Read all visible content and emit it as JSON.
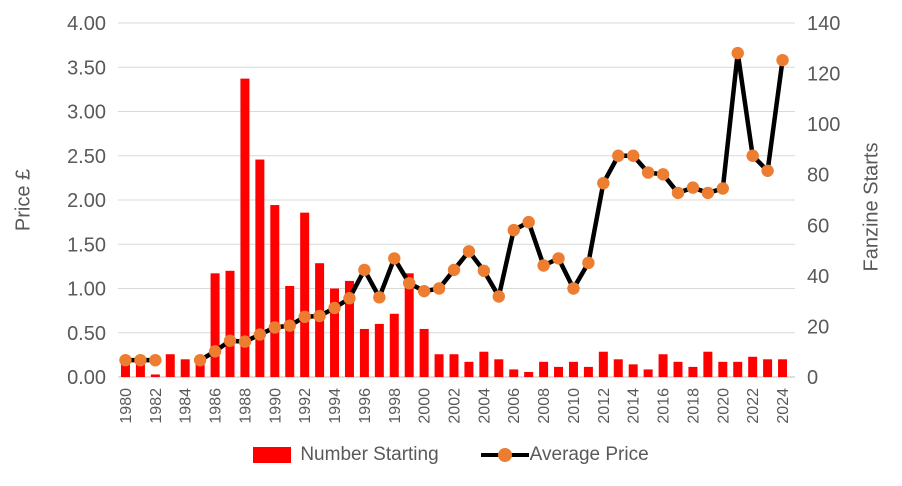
{
  "chart_data": {
    "type": "combo-bar-line",
    "categories": [
      1980,
      1981,
      1982,
      1983,
      1984,
      1985,
      1986,
      1987,
      1988,
      1989,
      1990,
      1991,
      1992,
      1993,
      1994,
      1995,
      1996,
      1997,
      1998,
      1999,
      2000,
      2001,
      2002,
      2003,
      2004,
      2005,
      2006,
      2007,
      2008,
      2009,
      2010,
      2011,
      2012,
      2013,
      2014,
      2015,
      2016,
      2017,
      2018,
      2019,
      2020,
      2021,
      2022,
      2023,
      2024
    ],
    "x_tick_every": 2,
    "x_tick_labels": [
      "1980",
      "1982",
      "1984",
      "1986",
      "1988",
      "1990",
      "1992",
      "1994",
      "1996",
      "1998",
      "2000",
      "2002",
      "2004",
      "2006",
      "2008",
      "2010",
      "2012",
      "2014",
      "2016",
      "2018",
      "2020",
      "2022",
      "2024"
    ],
    "series": [
      {
        "name": "Number Starting",
        "type": "bar",
        "axis": "right",
        "color": "#FF0000",
        "values": [
          5,
          5,
          1,
          9,
          7,
          8,
          41,
          42,
          118,
          86,
          68,
          36,
          65,
          45,
          35,
          38,
          19,
          21,
          25,
          41,
          19,
          9,
          9,
          6,
          10,
          7,
          3,
          2,
          6,
          4,
          6,
          4,
          10,
          7,
          5,
          3,
          9,
          6,
          4,
          10,
          6,
          6,
          8,
          7,
          7
        ]
      },
      {
        "name": "Average Price",
        "type": "line",
        "axis": "left",
        "line_color": "#000000",
        "marker_color": "#ED7D31",
        "values": [
          0.19,
          0.19,
          0.19,
          null,
          null,
          0.19,
          0.29,
          0.41,
          0.4,
          0.48,
          0.56,
          0.58,
          0.68,
          0.69,
          0.78,
          0.89,
          1.21,
          0.9,
          1.34,
          1.06,
          0.97,
          1.0,
          1.21,
          1.42,
          1.2,
          0.91,
          1.66,
          1.75,
          1.26,
          1.34,
          1.0,
          1.29,
          2.19,
          2.5,
          2.5,
          2.31,
          2.29,
          2.08,
          2.14,
          2.08,
          2.13,
          3.66,
          2.5,
          2.33,
          3.58
        ]
      }
    ],
    "left_axis": {
      "label": "Price £",
      "min": 0,
      "max": 4,
      "step": 0.5,
      "tick_labels": [
        "0.00",
        "0.50",
        "1.00",
        "1.50",
        "2.00",
        "2.50",
        "3.00",
        "3.50",
        "4.00"
      ]
    },
    "right_axis": {
      "label": "Fanzine Starts",
      "min": 0,
      "max": 140,
      "step": 20,
      "tick_labels": [
        "0",
        "20",
        "40",
        "60",
        "80",
        "100",
        "120",
        "140"
      ]
    },
    "grid": true,
    "legend_position": "bottom",
    "colors": {
      "gridline": "#D9D9D9",
      "baseline": "#BFBFBF",
      "text": "#595959",
      "background": "#FFFFFF"
    }
  }
}
